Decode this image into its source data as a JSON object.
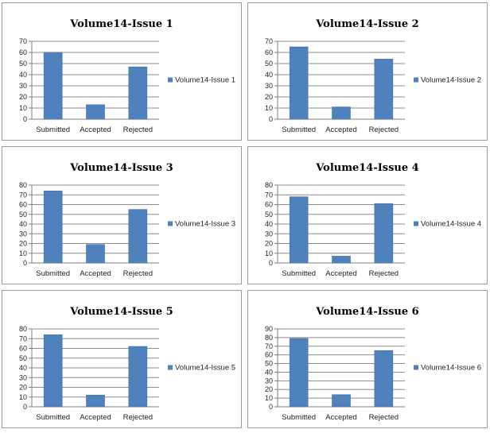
{
  "chart_data": [
    {
      "type": "bar",
      "title": "Volume14-Issue 1",
      "categories": [
        "Submitted",
        "Accepted",
        "Rejected"
      ],
      "series": [
        {
          "name": "Volume14-Issue 1",
          "values": [
            60,
            13,
            47
          ]
        }
      ],
      "ylim": [
        0,
        70
      ],
      "yticks": [
        0,
        10,
        20,
        30,
        40,
        50,
        60,
        70
      ],
      "grid": true,
      "legend": "right",
      "color": "#4f81bd"
    },
    {
      "type": "bar",
      "title": "Volume14-Issue 2",
      "categories": [
        "Submitted",
        "Accepted",
        "Rejected"
      ],
      "series": [
        {
          "name": "Volume14-Issue 2",
          "values": [
            65,
            11,
            54
          ]
        }
      ],
      "ylim": [
        0,
        70
      ],
      "yticks": [
        0,
        10,
        20,
        30,
        40,
        50,
        60,
        70
      ],
      "grid": true,
      "legend": "right",
      "color": "#4f81bd"
    },
    {
      "type": "bar",
      "title": "Volume14-Issue 3",
      "categories": [
        "Submitted",
        "Accepted",
        "Rejected"
      ],
      "series": [
        {
          "name": "Volume14-Issue 3",
          "values": [
            74,
            19,
            55
          ]
        }
      ],
      "ylim": [
        0,
        80
      ],
      "yticks": [
        0,
        10,
        20,
        30,
        40,
        50,
        60,
        70,
        80
      ],
      "grid": true,
      "legend": "right",
      "color": "#4f81bd"
    },
    {
      "type": "bar",
      "title": "Volume14-Issue 4",
      "categories": [
        "Submitted",
        "Accepted",
        "Rejected"
      ],
      "series": [
        {
          "name": "Volume14-Issue 4",
          "values": [
            68,
            7,
            61
          ]
        }
      ],
      "ylim": [
        0,
        80
      ],
      "yticks": [
        0,
        10,
        20,
        30,
        40,
        50,
        60,
        70,
        80
      ],
      "grid": true,
      "legend": "right",
      "color": "#4f81bd"
    },
    {
      "type": "bar",
      "title": "Volume14-Issue 5",
      "categories": [
        "Submitted",
        "Accepted",
        "Rejected"
      ],
      "series": [
        {
          "name": "Volume14-Issue 5",
          "values": [
            74,
            12,
            62
          ]
        }
      ],
      "ylim": [
        0,
        80
      ],
      "yticks": [
        0,
        10,
        20,
        30,
        40,
        50,
        60,
        70,
        80
      ],
      "grid": true,
      "legend": "right",
      "color": "#4f81bd"
    },
    {
      "type": "bar",
      "title": "Volume14-Issue 6",
      "categories": [
        "Submitted",
        "Accepted",
        "Rejected"
      ],
      "series": [
        {
          "name": "Volume14-Issue 6",
          "values": [
            79,
            14,
            65
          ]
        }
      ],
      "ylim": [
        0,
        90
      ],
      "yticks": [
        0,
        10,
        20,
        30,
        40,
        50,
        60,
        70,
        80,
        90
      ],
      "grid": true,
      "legend": "right",
      "color": "#4f81bd"
    }
  ]
}
